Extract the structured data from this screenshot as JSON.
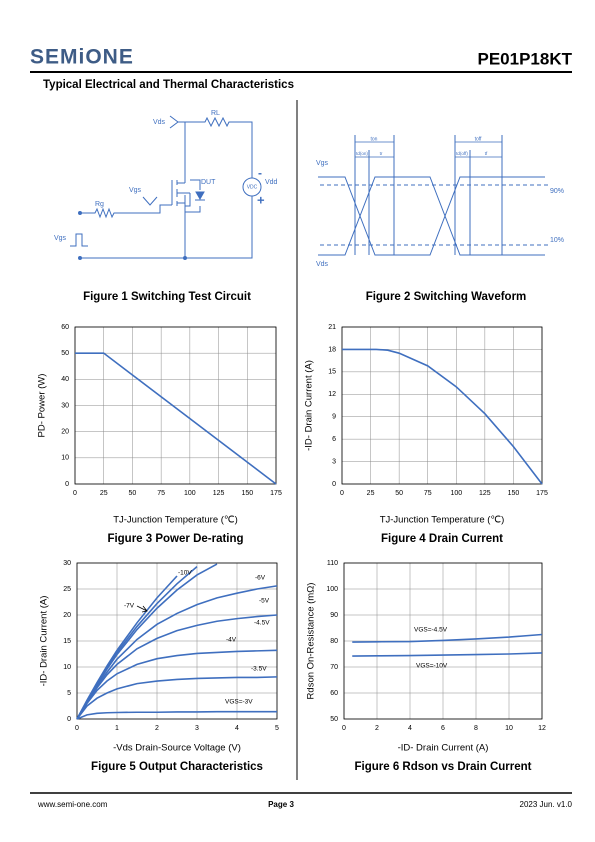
{
  "header": {
    "logo": "SEMiONE",
    "part_number": "PE01P18KT"
  },
  "section_title": "Typical Electrical and Thermal Characteristics",
  "figure1": {
    "caption": "Figure 1 Switching Test Circuit",
    "labels": [
      "Vds",
      "RL",
      "Vgs",
      "DUT",
      "Rg",
      "Vgs",
      "Vdd",
      "VDC",
      "-",
      "+"
    ]
  },
  "figure2": {
    "caption": "Figure 2 Switching Waveform",
    "labels": [
      "Vgs",
      "Vds",
      "90%",
      "10%",
      "ton",
      "toff",
      "td(on)",
      "tr",
      "td(off)",
      "tf"
    ]
  },
  "chart_data": [
    {
      "type": "line",
      "title": "Figure 3 Power De-rating",
      "x_label": "TJ-Junction Temperature (℃)",
      "y_label": "PD- Power (W)",
      "x": [
        0,
        25,
        175
      ],
      "values": [
        50,
        50,
        0
      ],
      "color": "#3f6fbf",
      "xlim": [
        0,
        175
      ],
      "xticks": [
        0,
        25,
        50,
        75,
        100,
        125,
        150,
        175
      ],
      "ylim": [
        0,
        60
      ],
      "yticks": [
        0,
        10,
        20,
        30,
        40,
        50,
        60
      ],
      "grid": true
    },
    {
      "type": "line",
      "title": "Figure 4 Drain Current",
      "x_label": "TJ-Junction Temperature (℃)",
      "y_label": "-ID- Drain Current (A)",
      "x": [
        0,
        30,
        40,
        50,
        75,
        100,
        125,
        150,
        175
      ],
      "values": [
        18,
        18,
        17.9,
        17.5,
        15.8,
        13.0,
        9.4,
        5.0,
        0
      ],
      "color": "#3f6fbf",
      "xlim": [
        0,
        175
      ],
      "xticks": [
        0,
        25,
        50,
        75,
        100,
        125,
        150,
        175
      ],
      "ylim": [
        0,
        21
      ],
      "yticks": [
        0,
        3,
        6,
        9,
        12,
        15,
        18,
        21
      ],
      "grid": true
    },
    {
      "type": "line",
      "title": "Figure 5 Output Characteristics",
      "x_label": "-Vds Drain-Source Voltage (V)",
      "y_label": "-ID- Drain Current (A)",
      "x": [
        0,
        0.25,
        0.5,
        0.75,
        1,
        1.5,
        2,
        2.5,
        3,
        3.5,
        4,
        4.5,
        5
      ],
      "series": [
        {
          "name": "VGS=-3V",
          "color": "#3f6fbf",
          "values": [
            0,
            0.8,
            1.1,
            1.2,
            1.25,
            1.3,
            1.3,
            1.35,
            1.35,
            1.4,
            1.4,
            1.4,
            1.4
          ]
        },
        {
          "name": "-3.5V",
          "color": "#3f6fbf",
          "values": [
            0,
            2.5,
            4,
            5,
            5.8,
            6.8,
            7.3,
            7.6,
            7.8,
            7.9,
            8.0,
            8.0,
            8.1
          ]
        },
        {
          "name": "-4V",
          "color": "#3f6fbf",
          "values": [
            0,
            3,
            5.5,
            7.3,
            8.7,
            10.5,
            11.6,
            12.2,
            12.6,
            12.8,
            13.0,
            13.1,
            13.2
          ]
        },
        {
          "name": "-4.5V",
          "color": "#3f6fbf",
          "values": [
            0,
            3.2,
            6,
            8.5,
            10.5,
            13.5,
            15.5,
            17,
            18,
            18.8,
            19.3,
            19.7,
            20
          ]
        },
        {
          "name": "-5V",
          "color": "#3f6fbf",
          "values": [
            0,
            3.3,
            6.3,
            9,
            11.5,
            15.3,
            18.2,
            20.3,
            22,
            23.3,
            24.2,
            25,
            25.6
          ]
        },
        {
          "name": "-6V",
          "color": "#3f6fbf",
          "values": [
            0,
            3.4,
            6.6,
            9.6,
            12.4,
            17.2,
            21.3,
            24.8,
            27.7,
            29.8,
            null,
            null,
            null
          ]
        },
        {
          "name": "-7V",
          "color": "#3f6fbf",
          "values": [
            0,
            3.5,
            6.8,
            9.9,
            12.8,
            17.8,
            22.2,
            26,
            29.3,
            null,
            null,
            null,
            null
          ]
        },
        {
          "name": "-10V",
          "color": "#3f6fbf",
          "values": [
            0,
            3.6,
            7,
            10.2,
            13.2,
            18.5,
            23.3,
            27.5,
            null,
            null,
            null,
            null,
            null
          ]
        }
      ],
      "xlim": [
        0,
        5
      ],
      "xticks": [
        0,
        1,
        2,
        3,
        4,
        5
      ],
      "ylim": [
        0,
        30
      ],
      "yticks": [
        0,
        5,
        10,
        15,
        20,
        25,
        30
      ],
      "grid": true
    },
    {
      "type": "line",
      "title": "Figure 6 Rdson vs Drain Current",
      "x_label": "-ID- Drain Current (A)",
      "y_label": "Rdson On-Resistance (mΩ)",
      "x": [
        0.5,
        2,
        4,
        6,
        8,
        10,
        12
      ],
      "series": [
        {
          "name": "VGS=-4.5V",
          "color": "#3f6fbf",
          "values": [
            79.6,
            79.7,
            79.8,
            80.2,
            80.8,
            81.5,
            82.5
          ]
        },
        {
          "name": "VGS=-10V",
          "color": "#3f6fbf",
          "values": [
            74.2,
            74.3,
            74.4,
            74.6,
            74.8,
            75.0,
            75.4
          ]
        }
      ],
      "xlim": [
        0,
        12
      ],
      "xticks": [
        0,
        2,
        4,
        6,
        8,
        10,
        12
      ],
      "ylim": [
        50,
        110
      ],
      "yticks": [
        50,
        60,
        70,
        80,
        90,
        100,
        110
      ],
      "grid": true
    }
  ],
  "footer": {
    "website": "www.semi-one.com",
    "page": "Page 3",
    "version": "2023 Jun. v1.0"
  }
}
